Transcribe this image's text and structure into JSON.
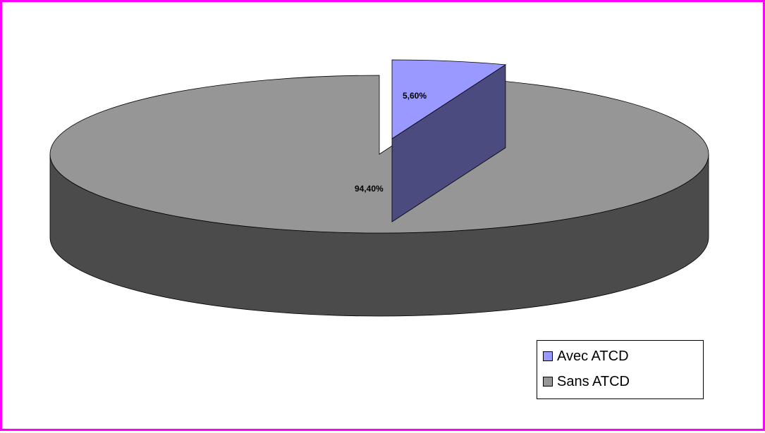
{
  "chart_data": {
    "type": "pie",
    "title": "",
    "categories": [
      "Avec ATCD",
      "Sans ATCD"
    ],
    "values": [
      5.6,
      94.4
    ],
    "data_labels": [
      "5,60%",
      "94,40%"
    ],
    "colors": [
      "#9999ff",
      "#969696"
    ],
    "side_colors": [
      "#4b4b80",
      "#4b4b4b"
    ],
    "legend_position": "bottom-right",
    "exploded": [
      "Avec ATCD"
    ],
    "style": "3d"
  },
  "frame": {
    "border_color": "#ff00ff"
  }
}
